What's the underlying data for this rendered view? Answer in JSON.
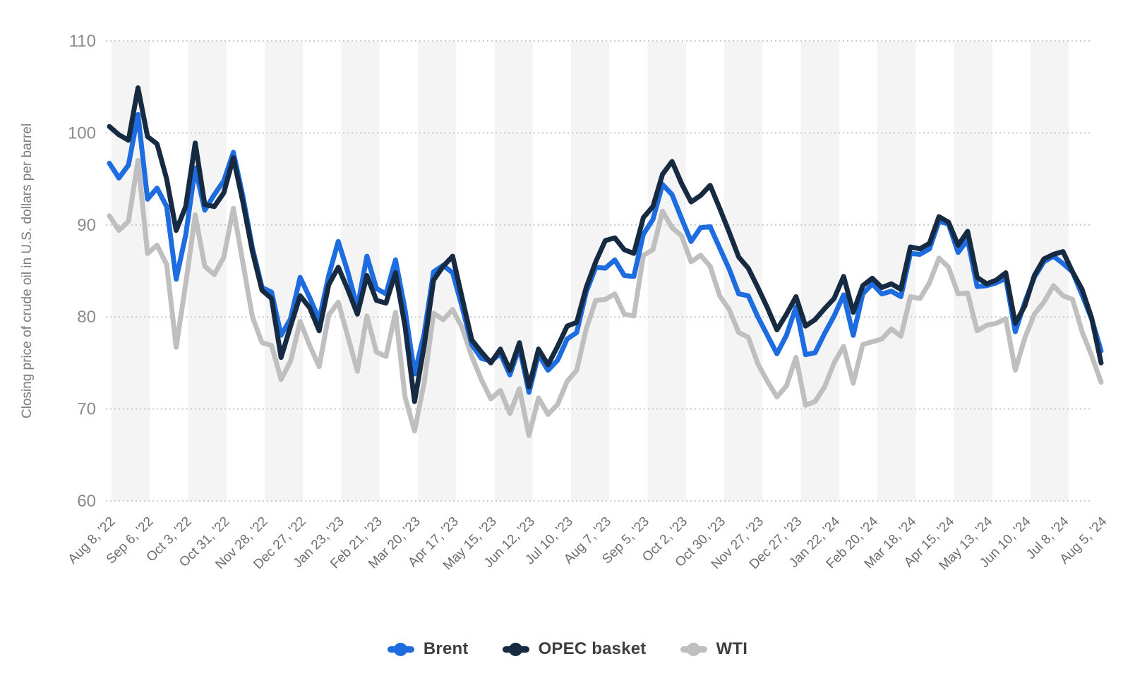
{
  "page": {
    "background": "#ffffff"
  },
  "legend": {
    "items": [
      {
        "label": "Brent",
        "color": "#1d6ce0"
      },
      {
        "label": "OPEC basket",
        "color": "#162a42"
      },
      {
        "label": "WTI",
        "color": "#bfbfbf"
      }
    ]
  },
  "chart_data": {
    "type": "line",
    "title": "",
    "xlabel": "",
    "ylabel": "Closing price of crude oil in U.S. dollars per barrel",
    "ylim": [
      60,
      110
    ],
    "yticks": [
      110,
      100,
      90,
      80,
      70,
      60
    ],
    "grid": "horizontal-dotted",
    "plot_bands": "alternating-light-gray-vertical-4-week",
    "legend_position": "bottom-center",
    "n_points": 105,
    "tick_every_n_points": 4,
    "x_tick_labels": [
      "Aug 8, '22",
      "Sep 6, '22",
      "Oct 3, '22",
      "Oct 31, '22",
      "Nov 28, '22",
      "Dec 27, '22",
      "Jan 23, '23",
      "Feb 21, '23",
      "Mar 20, '23",
      "Apr 17, '23",
      "May 15, '23",
      "Jun 12, '23",
      "Jul 10, '23",
      "Aug 7, '23",
      "Sep 5, '23",
      "Oct 2, '23",
      "Oct 30, '23",
      "Nov 27, '23",
      "Dec 27, '23",
      "Jan 22, '24",
      "Feb 20, '24",
      "Mar 18, '24",
      "Apr 15, '24",
      "May 13, '24",
      "Jun 10, '24",
      "Jul 8, '24",
      "Aug 5, '24"
    ],
    "series": [
      {
        "name": "Brent",
        "color": "#1d6ce0",
        "z": 2,
        "values": [
          96.7,
          95.1,
          96.5,
          102.0,
          92.8,
          94.0,
          92.0,
          84.1,
          88.9,
          96.2,
          91.6,
          93.3,
          94.8,
          97.9,
          93.1,
          87.5,
          83.2,
          82.7,
          78.0,
          79.8,
          84.3,
          82.1,
          79.7,
          84.5,
          88.2,
          84.9,
          81.0,
          86.6,
          83.1,
          82.5,
          86.2,
          80.8,
          73.8,
          78.1,
          84.9,
          85.6,
          84.8,
          81.0,
          77.0,
          75.5,
          75.2,
          76.0,
          73.7,
          76.7,
          71.8,
          75.9,
          74.2,
          75.3,
          77.6,
          78.3,
          82.7,
          85.4,
          85.3,
          86.2,
          84.5,
          84.4,
          89.0,
          90.6,
          94.4,
          93.3,
          90.7,
          88.2,
          89.7,
          89.8,
          87.5,
          85.2,
          82.5,
          82.3,
          80.0,
          78.0,
          76.0,
          78.0,
          81.1,
          75.9,
          76.1,
          78.2,
          80.1,
          82.4,
          78.0,
          82.5,
          83.6,
          82.5,
          82.8,
          82.2,
          86.9,
          86.8,
          87.4,
          90.4,
          90.1,
          87.0,
          88.4,
          83.3,
          83.4,
          83.7,
          84.2,
          78.4,
          81.6,
          84.3,
          86.0,
          86.6,
          85.8,
          84.9,
          82.4,
          79.8,
          76.3
        ]
      },
      {
        "name": "OPEC basket",
        "color": "#162a42",
        "z": 3,
        "values": [
          100.7,
          99.8,
          99.2,
          104.9,
          99.6,
          98.8,
          95.0,
          89.4,
          92.0,
          98.9,
          92.2,
          92.0,
          93.5,
          97.3,
          92.5,
          87.1,
          82.9,
          82.0,
          75.6,
          79.0,
          82.3,
          81.0,
          78.5,
          83.5,
          85.4,
          83.0,
          80.3,
          84.5,
          81.8,
          81.5,
          84.8,
          79.0,
          70.8,
          76.8,
          84.0,
          85.5,
          86.6,
          82.0,
          77.5,
          76.2,
          75.0,
          76.5,
          74.2,
          77.2,
          72.4,
          76.5,
          74.8,
          76.8,
          79.0,
          79.4,
          83.2,
          86.0,
          88.3,
          88.6,
          87.3,
          86.9,
          90.8,
          92.0,
          95.5,
          96.9,
          94.5,
          92.5,
          93.2,
          94.3,
          91.8,
          89.2,
          86.5,
          85.3,
          83.2,
          81.0,
          78.6,
          80.3,
          82.2,
          79.0,
          79.7,
          80.9,
          82.0,
          84.4,
          80.5,
          83.4,
          84.2,
          83.2,
          83.6,
          83.0,
          87.6,
          87.4,
          88.0,
          90.9,
          90.3,
          87.8,
          89.3,
          84.3,
          83.6,
          84.0,
          84.8,
          79.3,
          81.2,
          84.5,
          86.3,
          86.8,
          87.1,
          84.9,
          83.0,
          79.9,
          75.0
        ]
      },
      {
        "name": "WTI",
        "color": "#bfbfbf",
        "z": 1,
        "values": [
          91.0,
          89.4,
          90.4,
          97.0,
          86.9,
          87.8,
          85.7,
          76.7,
          83.6,
          91.1,
          85.5,
          84.6,
          86.5,
          91.8,
          85.9,
          80.0,
          77.2,
          76.9,
          73.2,
          75.2,
          79.5,
          76.9,
          74.6,
          80.2,
          81.6,
          77.9,
          74.1,
          80.1,
          76.2,
          75.7,
          80.5,
          71.3,
          67.6,
          72.8,
          80.4,
          79.7,
          80.8,
          78.8,
          75.7,
          73.2,
          71.1,
          72.0,
          69.5,
          72.2,
          67.1,
          71.2,
          69.4,
          70.5,
          73.0,
          74.2,
          78.7,
          81.8,
          81.9,
          82.5,
          80.3,
          80.1,
          86.7,
          87.3,
          91.5,
          89.7,
          88.8,
          86.0,
          86.7,
          85.5,
          82.3,
          80.8,
          78.3,
          77.8,
          74.9,
          73.0,
          71.3,
          72.5,
          75.6,
          70.4,
          70.8,
          72.4,
          75.0,
          76.8,
          72.8,
          77.0,
          77.3,
          77.6,
          78.7,
          77.9,
          82.2,
          82.0,
          83.7,
          86.4,
          85.4,
          82.5,
          82.6,
          78.5,
          79.1,
          79.3,
          79.8,
          74.2,
          77.7,
          80.3,
          81.6,
          83.4,
          82.3,
          81.9,
          78.4,
          75.8,
          72.9
        ]
      }
    ],
    "style": {
      "band_fill": "#f4f4f4",
      "gridline_color": "#c6c6c6",
      "y_tick_color": "#8c8c8c",
      "x_tick_color": "#6d6d6d",
      "y_title_color": "#7c7c7c",
      "line_width": 7
    }
  }
}
